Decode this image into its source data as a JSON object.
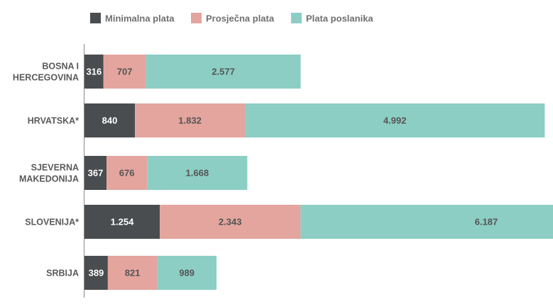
{
  "chart_data": {
    "type": "bar",
    "orientation": "horizontal",
    "stacked": true,
    "title": "",
    "xlabel": "",
    "ylabel": "",
    "categories": [
      [
        "BOSNA I",
        "HERCEGOVINA"
      ],
      [
        "HRVATSKA*"
      ],
      [
        "SJEVERNA",
        "MAKEDONIJA"
      ],
      [
        "SLOVENIJA*"
      ],
      [
        "SRBIJA"
      ]
    ],
    "series": [
      {
        "name": "Minimalna plata",
        "color": "#4a4d4f",
        "label_color": "#ffffff",
        "values": [
          316,
          840,
          367,
          1254,
          389
        ],
        "labels": [
          "316",
          "840",
          "367",
          "1.254",
          "389"
        ]
      },
      {
        "name": "Prosječna plata",
        "color": "#e3a59e",
        "label_color": "#555555",
        "values": [
          707,
          1832,
          676,
          2343,
          821
        ],
        "labels": [
          "707",
          "1.832",
          "676",
          "2.343",
          "821"
        ]
      },
      {
        "name": "Plata poslanika",
        "color": "#8ccec4",
        "label_color": "#555555",
        "values": [
          2577,
          4992,
          1668,
          6187,
          989
        ],
        "labels": [
          "2.577",
          "4.992",
          "1.668",
          "6.187",
          "989"
        ]
      }
    ],
    "legend_position": "top",
    "grid": false
  }
}
